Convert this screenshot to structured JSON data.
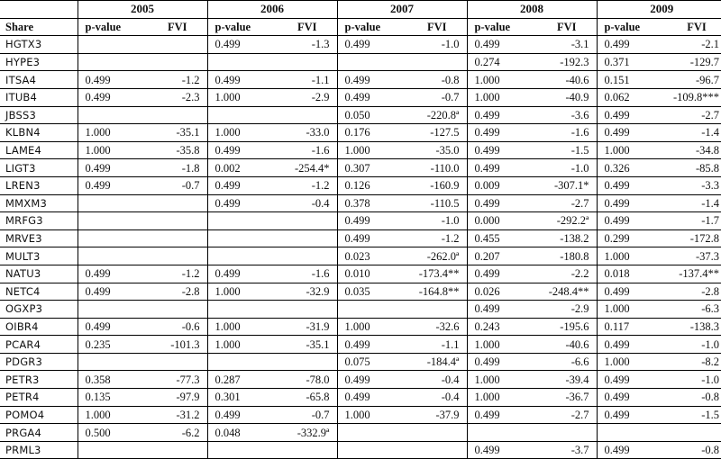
{
  "table": {
    "years": [
      "2005",
      "2006",
      "2007",
      "2008",
      "2009"
    ],
    "share_header": "Share",
    "pvalue_header": "p-value",
    "fvi_header": "FVI",
    "rows": [
      {
        "share": "HGTX3",
        "cells": [
          [
            "",
            ""
          ],
          [
            "0.499",
            "-1.3"
          ],
          [
            "0.499",
            "-1.0"
          ],
          [
            "0.499",
            "-3.1"
          ],
          [
            "0.499",
            "-2.1"
          ]
        ]
      },
      {
        "share": "HYPE3",
        "cells": [
          [
            "",
            ""
          ],
          [
            "",
            ""
          ],
          [
            "",
            ""
          ],
          [
            "0.274",
            "-192.3"
          ],
          [
            "0.371",
            "-129.7"
          ]
        ]
      },
      {
        "share": "ITSA4",
        "cells": [
          [
            "0.499",
            "-1.2"
          ],
          [
            "0.499",
            "-1.1"
          ],
          [
            "0.499",
            "-0.8"
          ],
          [
            "1.000",
            "-40.6"
          ],
          [
            "0.151",
            "-96.7"
          ]
        ]
      },
      {
        "share": "ITUB4",
        "cells": [
          [
            "0.499",
            "-2.3"
          ],
          [
            "1.000",
            "-2.9"
          ],
          [
            "0.499",
            "-0.7"
          ],
          [
            "1.000",
            "-40.9"
          ],
          [
            "0.062",
            "-109.8***"
          ]
        ]
      },
      {
        "share": "JBSS3",
        "cells": [
          [
            "",
            ""
          ],
          [
            "",
            ""
          ],
          [
            "0.050",
            "-220.8ª"
          ],
          [
            "0.499",
            "-3.6"
          ],
          [
            "0.499",
            "-2.7"
          ]
        ]
      },
      {
        "share": "KLBN4",
        "cells": [
          [
            "1.000",
            "-35.1"
          ],
          [
            "1.000",
            "-33.0"
          ],
          [
            "0.176",
            "-127.5"
          ],
          [
            "0.499",
            "-1.6"
          ],
          [
            "0.499",
            "-1.4"
          ]
        ]
      },
      {
        "share": "LAME4",
        "cells": [
          [
            "1.000",
            "-35.8"
          ],
          [
            "0.499",
            "-1.6"
          ],
          [
            "1.000",
            "-35.0"
          ],
          [
            "0.499",
            "-1.5"
          ],
          [
            "1.000",
            "-34.8"
          ]
        ]
      },
      {
        "share": "LIGT3",
        "cells": [
          [
            "0.499",
            "-1.8"
          ],
          [
            "0.002",
            "-254.4*"
          ],
          [
            "0.307",
            "-110.0"
          ],
          [
            "0.499",
            "-1.0"
          ],
          [
            "0.326",
            "-85.8"
          ]
        ]
      },
      {
        "share": "LREN3",
        "cells": [
          [
            "0.499",
            "-0.7"
          ],
          [
            "0.499",
            "-1.2"
          ],
          [
            "0.126",
            "-160.9"
          ],
          [
            "0.009",
            "-307.1*"
          ],
          [
            "0.499",
            "-3.3"
          ]
        ]
      },
      {
        "share": "MMXM3",
        "cells": [
          [
            "",
            ""
          ],
          [
            "0.499",
            "-0.4"
          ],
          [
            "0.378",
            "-110.5"
          ],
          [
            "0.499",
            "-2.7"
          ],
          [
            "0.499",
            "-1.4"
          ]
        ]
      },
      {
        "share": "MRFG3",
        "cells": [
          [
            "",
            ""
          ],
          [
            "",
            ""
          ],
          [
            "0.499",
            "-1.0"
          ],
          [
            "0.000",
            "-292.2ª"
          ],
          [
            "0.499",
            "-1.7"
          ]
        ]
      },
      {
        "share": "MRVE3",
        "cells": [
          [
            "",
            ""
          ],
          [
            "",
            ""
          ],
          [
            "0.499",
            "-1.2"
          ],
          [
            "0.455",
            "-138.2"
          ],
          [
            "0.299",
            "-172.8"
          ]
        ]
      },
      {
        "share": "MULT3",
        "cells": [
          [
            "",
            ""
          ],
          [
            "",
            ""
          ],
          [
            "0.023",
            "-262.0ª"
          ],
          [
            "0.207",
            "-180.8"
          ],
          [
            "1.000",
            "-37.3"
          ]
        ]
      },
      {
        "share": "NATU3",
        "cells": [
          [
            "0.499",
            "-1.2"
          ],
          [
            "0.499",
            "-1.6"
          ],
          [
            "0.010",
            "-173.4**"
          ],
          [
            "0.499",
            "-2.2"
          ],
          [
            "0.018",
            "-137.4**"
          ]
        ]
      },
      {
        "share": "NETC4",
        "cells": [
          [
            "0.499",
            "-2.8"
          ],
          [
            "1.000",
            "-32.9"
          ],
          [
            "0.035",
            "-164.8**"
          ],
          [
            "0.026",
            "-248.4**"
          ],
          [
            "0.499",
            "-2.8"
          ]
        ]
      },
      {
        "share": "OGXP3",
        "cells": [
          [
            "",
            ""
          ],
          [
            "",
            ""
          ],
          [
            "",
            ""
          ],
          [
            "0.499",
            "-2.9"
          ],
          [
            "1.000",
            "-6.3"
          ]
        ]
      },
      {
        "share": "OIBR4",
        "cells": [
          [
            "0.499",
            "-0.6"
          ],
          [
            "1.000",
            "-31.9"
          ],
          [
            "1.000",
            "-32.6"
          ],
          [
            "0.243",
            "-195.6"
          ],
          [
            "0.117",
            "-138.3"
          ]
        ]
      },
      {
        "share": "PCAR4",
        "cells": [
          [
            "0.235",
            "-101.3"
          ],
          [
            "1.000",
            "-35.1"
          ],
          [
            "0.499",
            "-1.1"
          ],
          [
            "1.000",
            "-40.6"
          ],
          [
            "0.499",
            "-1.0"
          ]
        ]
      },
      {
        "share": "PDGR3",
        "cells": [
          [
            "",
            ""
          ],
          [
            "",
            ""
          ],
          [
            "0.075",
            "-184.4ª"
          ],
          [
            "0.499",
            "-6.6"
          ],
          [
            "1.000",
            "-8.2"
          ]
        ]
      },
      {
        "share": "PETR3",
        "cells": [
          [
            "0.358",
            "-77.3"
          ],
          [
            "0.287",
            "-78.0"
          ],
          [
            "0.499",
            "-0.4"
          ],
          [
            "1.000",
            "-39.4"
          ],
          [
            "0.499",
            "-1.0"
          ]
        ]
      },
      {
        "share": "PETR4",
        "cells": [
          [
            "0.135",
            "-97.9"
          ],
          [
            "0.301",
            "-65.8"
          ],
          [
            "0.499",
            "-0.4"
          ],
          [
            "1.000",
            "-36.7"
          ],
          [
            "0.499",
            "-0.8"
          ]
        ]
      },
      {
        "share": "POMO4",
        "cells": [
          [
            "1.000",
            "-31.2"
          ],
          [
            "0.499",
            "-0.7"
          ],
          [
            "1.000",
            "-37.9"
          ],
          [
            "0.499",
            "-2.7"
          ],
          [
            "0.499",
            "-1.5"
          ]
        ]
      },
      {
        "share": "PRGA4",
        "cells": [
          [
            "0.500",
            "-6.2"
          ],
          [
            "0.048",
            "-332.9ª"
          ],
          [
            "",
            ""
          ],
          [
            "",
            ""
          ],
          [
            "",
            ""
          ]
        ]
      },
      {
        "share": "PRML3",
        "cells": [
          [
            "",
            ""
          ],
          [
            "",
            ""
          ],
          [
            "",
            ""
          ],
          [
            "0.499",
            "-3.7"
          ],
          [
            "0.499",
            "-0.8"
          ]
        ]
      }
    ]
  }
}
